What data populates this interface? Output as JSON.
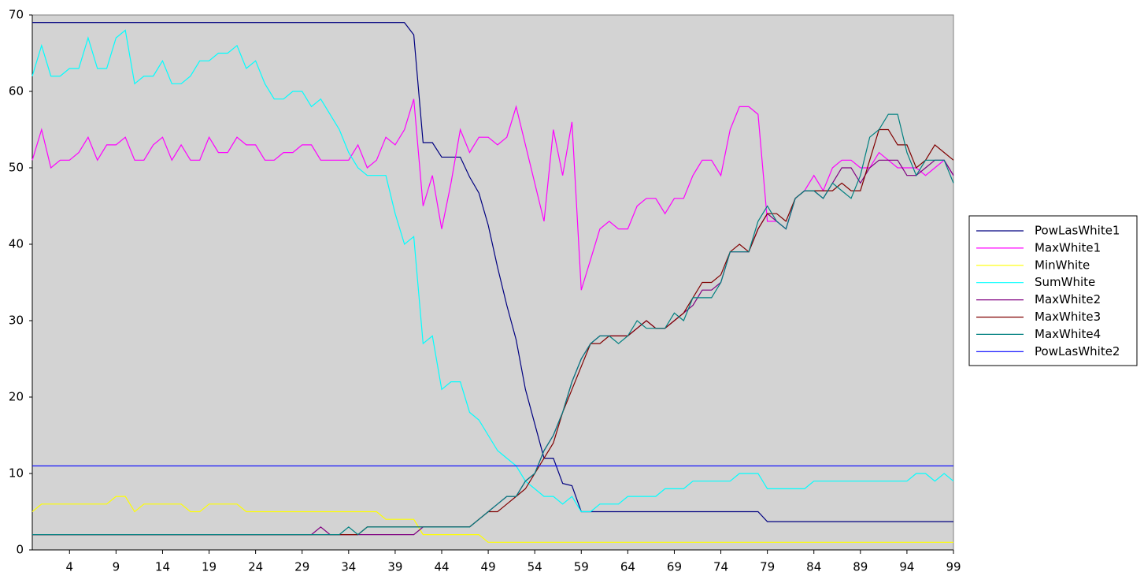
{
  "chart_data": {
    "type": "line",
    "x": [
      0,
      1,
      2,
      3,
      4,
      5,
      6,
      7,
      8,
      9,
      10,
      11,
      12,
      13,
      14,
      15,
      16,
      17,
      18,
      19,
      20,
      21,
      22,
      23,
      24,
      25,
      26,
      27,
      28,
      29,
      30,
      31,
      32,
      33,
      34,
      35,
      36,
      37,
      38,
      39,
      40,
      41,
      42,
      43,
      44,
      45,
      46,
      47,
      48,
      49,
      50,
      51,
      52,
      53,
      54,
      55,
      56,
      57,
      58,
      59,
      60,
      61,
      62,
      63,
      64,
      65,
      66,
      67,
      68,
      69,
      70,
      71,
      72,
      73,
      74,
      75,
      76,
      77,
      78,
      79,
      80,
      81,
      82,
      83,
      84,
      85,
      86,
      87,
      88,
      89,
      90,
      91,
      92,
      93,
      94,
      95,
      96,
      97,
      98,
      99
    ],
    "xlim": [
      0,
      99
    ],
    "xticks": [
      4,
      9,
      14,
      19,
      24,
      29,
      34,
      39,
      44,
      49,
      54,
      59,
      64,
      69,
      74,
      79,
      84,
      89,
      94,
      99
    ],
    "ylim": [
      0,
      70
    ],
    "yticks": [
      0,
      10,
      20,
      30,
      40,
      50,
      60,
      70
    ],
    "grid": false,
    "legend": "right",
    "series": [
      {
        "name": "PowLasWhite1",
        "color": "#000080",
        "values": [
          69,
          69,
          69,
          69,
          69,
          69,
          69,
          69,
          69,
          69,
          69,
          69,
          69,
          69,
          69,
          69,
          69,
          69,
          69,
          69,
          69,
          69,
          69,
          69,
          69,
          69,
          69,
          69,
          69,
          69,
          69,
          69,
          69,
          69,
          69,
          69,
          69,
          69,
          69,
          69,
          69,
          67.4,
          53.3,
          53.3,
          51.4,
          51.4,
          51.4,
          48.8,
          46.7,
          42.5,
          37,
          32,
          27.5,
          21,
          16.5,
          12,
          12,
          8.7,
          8.4,
          5,
          5,
          5,
          5,
          5,
          5,
          5,
          5,
          5,
          5,
          5,
          5,
          5,
          5,
          5,
          5,
          5,
          5,
          5,
          5,
          3.7,
          3.7,
          3.7,
          3.7,
          3.7,
          3.7,
          3.7,
          3.7,
          3.7,
          3.7,
          3.7,
          3.7,
          3.7,
          3.7,
          3.7,
          3.7,
          3.7,
          3.7,
          3.7,
          3.7,
          3.7
        ]
      },
      {
        "name": "MaxWhite1",
        "color": "#ff00ff",
        "values": [
          51,
          55,
          50,
          51,
          51,
          52,
          54,
          51,
          53,
          53,
          54,
          51,
          51,
          53,
          54,
          51,
          53,
          51,
          51,
          54,
          52,
          52,
          54,
          53,
          53,
          51,
          51,
          52,
          52,
          53,
          53,
          51,
          51,
          51,
          51,
          53,
          50,
          51,
          54,
          53,
          55,
          59,
          45,
          49,
          42,
          48,
          55,
          52,
          54,
          54,
          53,
          54,
          58,
          53,
          48,
          43,
          55,
          49,
          56,
          34,
          38,
          42,
          43,
          42,
          42,
          45,
          46,
          46,
          44,
          46,
          46,
          49,
          51,
          51,
          49,
          55,
          58,
          58,
          57,
          43,
          43,
          42,
          46,
          47,
          49,
          47,
          50,
          51,
          51,
          50,
          50,
          52,
          51,
          50,
          50,
          50,
          49,
          50,
          51,
          49
        ]
      },
      {
        "name": "MinWhite",
        "color": "#ffff00",
        "values": [
          5,
          6,
          6,
          6,
          6,
          6,
          6,
          6,
          6,
          7,
          7,
          5,
          6,
          6,
          6,
          6,
          6,
          5,
          5,
          6,
          6,
          6,
          6,
          5,
          5,
          5,
          5,
          5,
          5,
          5,
          5,
          5,
          5,
          5,
          5,
          5,
          5,
          5,
          4,
          4,
          4,
          4,
          2,
          2,
          2,
          2,
          2,
          2,
          2,
          1,
          1,
          1,
          1,
          1,
          1,
          1,
          1,
          1,
          1,
          1,
          1,
          1,
          1,
          1,
          1,
          1,
          1,
          1,
          1,
          1,
          1,
          1,
          1,
          1,
          1,
          1,
          1,
          1,
          1,
          1,
          1,
          1,
          1,
          1,
          1,
          1,
          1,
          1,
          1,
          1,
          1,
          1,
          1,
          1,
          1,
          1,
          1,
          1,
          1,
          1
        ]
      },
      {
        "name": "SumWhite",
        "color": "#00ffff",
        "values": [
          62,
          66,
          62,
          62,
          63,
          63,
          67,
          63,
          63,
          67,
          68,
          61,
          62,
          62,
          64,
          61,
          61,
          62,
          64,
          64,
          65,
          65,
          66,
          63,
          64,
          61,
          59,
          59,
          60,
          60,
          58,
          59,
          57,
          55,
          52,
          50,
          49,
          49,
          49,
          44,
          40,
          41,
          27,
          28,
          21,
          22,
          22,
          18,
          17,
          15,
          13,
          12,
          11,
          9,
          8,
          7,
          7,
          6,
          7,
          5,
          5,
          6,
          6,
          6,
          7,
          7,
          7,
          7,
          8,
          8,
          8,
          9,
          9,
          9,
          9,
          9,
          10,
          10,
          10,
          8,
          8,
          8,
          8,
          8,
          9,
          9,
          9,
          9,
          9,
          9,
          9,
          9,
          9,
          9,
          9,
          10,
          10,
          9,
          10,
          9
        ]
      },
      {
        "name": "MaxWhite2",
        "color": "#800080",
        "values": [
          2,
          2,
          2,
          2,
          2,
          2,
          2,
          2,
          2,
          2,
          2,
          2,
          2,
          2,
          2,
          2,
          2,
          2,
          2,
          2,
          2,
          2,
          2,
          2,
          2,
          2,
          2,
          2,
          2,
          2,
          2,
          3,
          2,
          2,
          2,
          2,
          2,
          2,
          2,
          2,
          2,
          2,
          3,
          3,
          3,
          3,
          3,
          3,
          4,
          5,
          6,
          7,
          7,
          9,
          10,
          13,
          15,
          18,
          22,
          25,
          27,
          28,
          28,
          28,
          28,
          29,
          30,
          29,
          29,
          30,
          31,
          32,
          34,
          34,
          35,
          39,
          39,
          39,
          42,
          44,
          43,
          42,
          46,
          47,
          47,
          46,
          48,
          50,
          50,
          48,
          50,
          51,
          51,
          51,
          49,
          49,
          50,
          51,
          51,
          49
        ]
      },
      {
        "name": "MaxWhite3",
        "color": "#800000",
        "values": [
          2,
          2,
          2,
          2,
          2,
          2,
          2,
          2,
          2,
          2,
          2,
          2,
          2,
          2,
          2,
          2,
          2,
          2,
          2,
          2,
          2,
          2,
          2,
          2,
          2,
          2,
          2,
          2,
          2,
          2,
          2,
          2,
          2,
          2,
          2,
          2,
          3,
          3,
          3,
          3,
          3,
          3,
          3,
          3,
          3,
          3,
          3,
          3,
          4,
          5,
          5,
          6,
          7,
          8,
          10,
          12,
          14,
          18,
          21,
          24,
          27,
          27,
          28,
          28,
          28,
          29,
          30,
          29,
          29,
          30,
          31,
          33,
          35,
          35,
          36,
          39,
          40,
          39,
          42,
          44,
          44,
          43,
          46,
          47,
          47,
          47,
          47,
          48,
          47,
          47,
          51,
          55,
          55,
          53,
          53,
          50,
          51,
          53,
          52,
          51
        ]
      },
      {
        "name": "MaxWhite4",
        "color": "#008080",
        "values": [
          2,
          2,
          2,
          2,
          2,
          2,
          2,
          2,
          2,
          2,
          2,
          2,
          2,
          2,
          2,
          2,
          2,
          2,
          2,
          2,
          2,
          2,
          2,
          2,
          2,
          2,
          2,
          2,
          2,
          2,
          2,
          2,
          2,
          2,
          3,
          2,
          3,
          3,
          3,
          3,
          3,
          3,
          3,
          3,
          3,
          3,
          3,
          3,
          4,
          5,
          6,
          7,
          7,
          9,
          10,
          13,
          15,
          18,
          22,
          25,
          27,
          28,
          28,
          27,
          28,
          30,
          29,
          29,
          29,
          31,
          30,
          33,
          33,
          33,
          35,
          39,
          39,
          39,
          43,
          45,
          43,
          42,
          46,
          47,
          47,
          46,
          48,
          47,
          46,
          49,
          54,
          55,
          57,
          57,
          52,
          49,
          51,
          51,
          51,
          48
        ]
      },
      {
        "name": "PowLasWhite2",
        "color": "#0000ff",
        "values": [
          11,
          11,
          11,
          11,
          11,
          11,
          11,
          11,
          11,
          11,
          11,
          11,
          11,
          11,
          11,
          11,
          11,
          11,
          11,
          11,
          11,
          11,
          11,
          11,
          11,
          11,
          11,
          11,
          11,
          11,
          11,
          11,
          11,
          11,
          11,
          11,
          11,
          11,
          11,
          11,
          11,
          11,
          11,
          11,
          11,
          11,
          11,
          11,
          11,
          11,
          11,
          11,
          11,
          11,
          11,
          11,
          11,
          11,
          11,
          11,
          11,
          11,
          11,
          11,
          11,
          11,
          11,
          11,
          11,
          11,
          11,
          11,
          11,
          11,
          11,
          11,
          11,
          11,
          11,
          11,
          11,
          11,
          11,
          11,
          11,
          11,
          11,
          11,
          11,
          11,
          11,
          11,
          11,
          11,
          11,
          11,
          11,
          11,
          11,
          11
        ]
      }
    ]
  }
}
